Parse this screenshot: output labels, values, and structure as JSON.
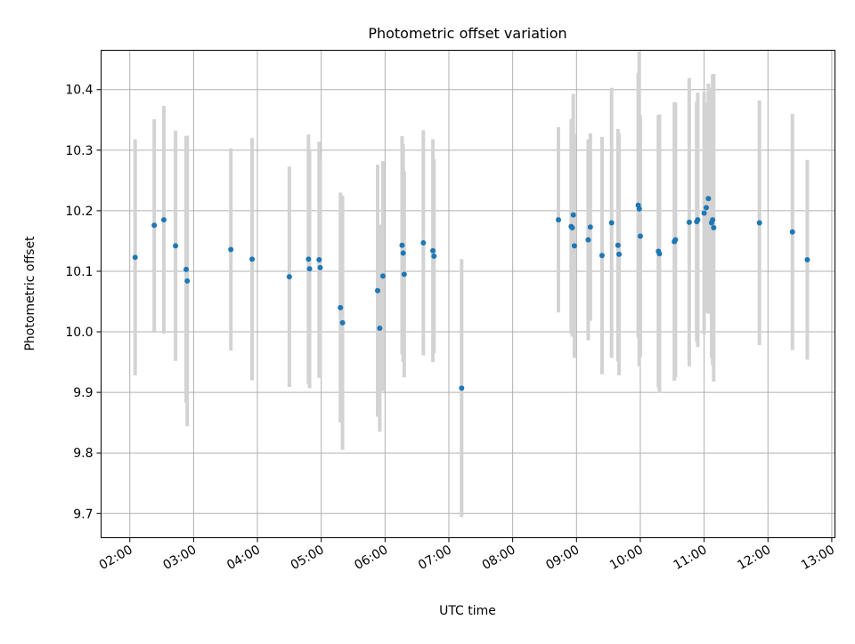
{
  "chart_data": {
    "type": "scatter",
    "title": "Photometric offset variation",
    "xlabel": "UTC time",
    "ylabel": "Photometric offset",
    "x_ticks": [
      "02:00",
      "03:00",
      "04:00",
      "05:00",
      "06:00",
      "07:00",
      "08:00",
      "09:00",
      "10:00",
      "11:00",
      "12:00",
      "13:00"
    ],
    "xlim": [
      "01:33",
      "13:03"
    ],
    "ylim": [
      9.66,
      10.465
    ],
    "y_ticks": [
      9.7,
      9.8,
      9.9,
      10.0,
      10.1,
      10.2,
      10.3,
      10.4
    ],
    "grid": true,
    "colors": {
      "points": "#1f77b4",
      "errorbars": "#d3d3d3",
      "grid": "#b0b0b0"
    },
    "series": [
      {
        "x": [
          "02:05",
          "02:23",
          "02:32",
          "02:43",
          "02:53",
          "02:54",
          "03:35",
          "03:55",
          "04:30",
          "04:48",
          "04:49",
          "04:58",
          "04:59",
          "05:18",
          "05:20",
          "05:53",
          "05:55",
          "05:58",
          "06:16",
          "06:17",
          "06:18",
          "06:36",
          "06:45",
          "06:46",
          "07:12",
          "08:43",
          "08:55",
          "08:56",
          "08:57",
          "08:58",
          "09:11",
          "09:13",
          "09:24",
          "09:33",
          "09:39",
          "09:40",
          "09:58",
          "09:59",
          "10:00",
          "10:17",
          "10:18",
          "10:32",
          "10:33",
          "10:46",
          "10:53",
          "10:54",
          "11:00",
          "11:02",
          "11:04",
          "11:07",
          "11:08",
          "11:09",
          "11:52",
          "12:23",
          "12:37"
        ],
        "y": [
          10.123,
          10.176,
          10.185,
          10.142,
          10.103,
          10.084,
          10.136,
          10.12,
          10.091,
          10.12,
          10.104,
          10.119,
          10.106,
          10.04,
          10.015,
          10.068,
          10.006,
          10.092,
          10.143,
          10.13,
          10.095,
          10.147,
          10.134,
          10.125,
          9.907,
          10.185,
          10.174,
          10.172,
          10.193,
          10.142,
          10.152,
          10.173,
          10.126,
          10.18,
          10.143,
          10.128,
          10.209,
          10.203,
          10.158,
          10.133,
          10.129,
          10.149,
          10.152,
          10.181,
          10.182,
          10.185,
          10.196,
          10.205,
          10.22,
          10.18,
          10.185,
          10.172,
          10.18,
          10.165,
          10.119
        ],
        "yerr": [
          0.195,
          0.175,
          0.188,
          0.19,
          0.22,
          0.24,
          0.167,
          0.2,
          0.182,
          0.206,
          0.197,
          0.195,
          0.18,
          0.19,
          0.21,
          0.208,
          0.171,
          0.19,
          0.18,
          0.18,
          0.17,
          0.186,
          0.184,
          0.16,
          0.213,
          0.153,
          0.177,
          0.18,
          0.2,
          0.185,
          0.166,
          0.155,
          0.196,
          0.223,
          0.192,
          0.2,
          0.219,
          0.26,
          0.2,
          0.225,
          0.23,
          0.23,
          0.227,
          0.238,
          0.198,
          0.21,
          0.2,
          0.173,
          0.19,
          0.223,
          0.24,
          0.254,
          0.202,
          0.195,
          0.165
        ]
      }
    ]
  }
}
